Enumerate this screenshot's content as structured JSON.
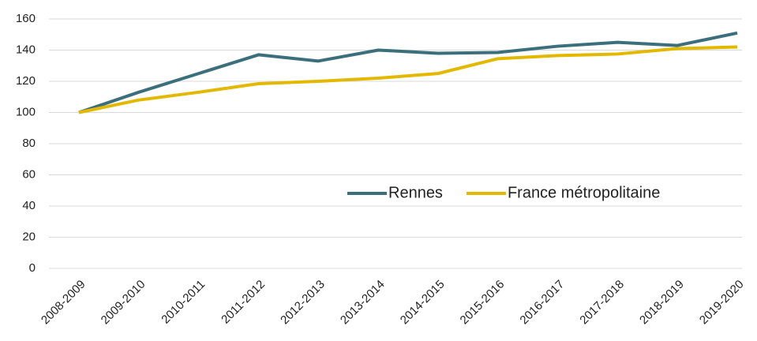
{
  "chart_data": {
    "type": "line",
    "categories": [
      "2008-2009",
      "2009-2010",
      "2010-2011",
      "2011-2012",
      "2012-2013",
      "2013-2014",
      "2014-2015",
      "2015-2016",
      "2016-2017",
      "2017-2018",
      "2018-2019",
      "2019-2020"
    ],
    "series": [
      {
        "name": "Rennes",
        "color": "#3b6f7b",
        "values": [
          100,
          113,
          125,
          137,
          133,
          140,
          138,
          138.5,
          142.5,
          145,
          143,
          151
        ]
      },
      {
        "name": "France métropolitaine",
        "color": "#e3b900",
        "values": [
          100,
          108,
          113,
          118.5,
          120,
          122,
          125,
          134.5,
          136.5,
          137.5,
          141,
          142
        ]
      }
    ],
    "ylim": [
      0,
      160
    ],
    "yticks": [
      0,
      20,
      40,
      60,
      80,
      100,
      120,
      140,
      160
    ],
    "grid": true,
    "legend": "center-right"
  }
}
